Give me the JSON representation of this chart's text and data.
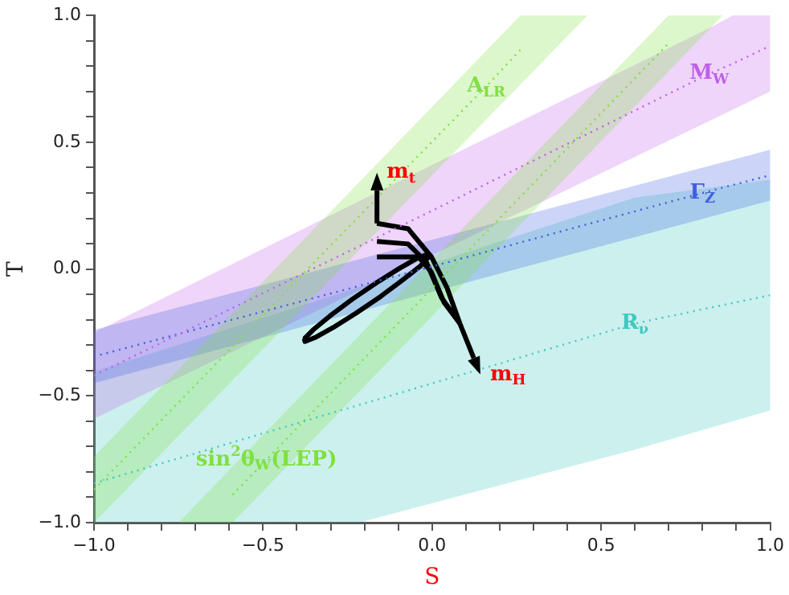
{
  "chart_data": {
    "type": "line",
    "xlabel": "S",
    "ylabel": "T",
    "grid": false,
    "legend": false,
    "xlim": [
      -1,
      1
    ],
    "ylim": [
      -1,
      1
    ],
    "xticks": [
      {
        "value": -1,
        "label": "−1.0"
      },
      {
        "value": -0.9,
        "label": null
      },
      {
        "value": -0.8,
        "label": null
      },
      {
        "value": -0.7,
        "label": null
      },
      {
        "value": -0.6,
        "label": null
      },
      {
        "value": -0.5,
        "label": "−0.5"
      },
      {
        "value": -0.4,
        "label": null
      },
      {
        "value": -0.3,
        "label": null
      },
      {
        "value": -0.2,
        "label": null
      },
      {
        "value": -0.1,
        "label": null
      },
      {
        "value": 0,
        "label": "0.0"
      },
      {
        "value": 0.1,
        "label": null
      },
      {
        "value": 0.2,
        "label": null
      },
      {
        "value": 0.3,
        "label": null
      },
      {
        "value": 0.4,
        "label": null
      },
      {
        "value": 0.5,
        "label": "0.5"
      },
      {
        "value": 0.6,
        "label": null
      },
      {
        "value": 0.7,
        "label": null
      },
      {
        "value": 0.8,
        "label": null
      },
      {
        "value": 0.9,
        "label": null
      },
      {
        "value": 1,
        "label": "1.0"
      }
    ],
    "yticks": [
      {
        "value": -1,
        "label": "−1.0"
      },
      {
        "value": -0.9,
        "label": null
      },
      {
        "value": -0.8,
        "label": null
      },
      {
        "value": -0.7,
        "label": null
      },
      {
        "value": -0.6,
        "label": null
      },
      {
        "value": -0.5,
        "label": "−0.5"
      },
      {
        "value": -0.4,
        "label": null
      },
      {
        "value": -0.3,
        "label": null
      },
      {
        "value": -0.2,
        "label": null
      },
      {
        "value": -0.1,
        "label": null
      },
      {
        "value": 0,
        "label": "0.0"
      },
      {
        "value": 0.1,
        "label": null
      },
      {
        "value": 0.2,
        "label": null
      },
      {
        "value": 0.3,
        "label": null
      },
      {
        "value": 0.4,
        "label": null
      },
      {
        "value": 0.5,
        "label": "0.5"
      },
      {
        "value": 0.6,
        "label": null
      },
      {
        "value": 0.7,
        "label": null
      },
      {
        "value": 0.8,
        "label": null
      },
      {
        "value": 0.9,
        "label": null
      },
      {
        "value": 1,
        "label": "1.0"
      }
    ],
    "annotations": [
      {
        "text": "m$_{t}$",
        "x": -0.163,
        "y": 0.38
      },
      {
        "text": "m$_{H}$",
        "x": 0.143,
        "y": -0.416
      }
    ],
    "series": [
      {
        "name": "R$_{ν}$",
        "color": "#40c8c0",
        "line_style": "dotted",
        "x": [
          -1,
          -0.216,
          0.6,
          1
        ],
        "values": [
          -0.845,
          -0.536,
          -0.215,
          -0.103
        ],
        "lower": [
          -1,
          -1,
          -0.712,
          -0.558
        ],
        "upper": [
          -0.405,
          -0.072,
          0.282,
          0.352
        ]
      },
      {
        "name": "M$_{W}$",
        "color": "#c060e8",
        "line_style": "dotted",
        "x": [
          -1,
          0,
          0.82,
          0.89,
          1
        ],
        "values": [
          -0.42,
          0.23,
          0.77,
          0.81,
          0.88
        ],
        "lower": [
          -0.59,
          0.055,
          0.584,
          0.629,
          0.7
        ],
        "upper": [
          -0.25,
          0.41,
          0.95,
          1,
          1
        ]
      },
      {
        "name": "Γ$_{Z}$",
        "color": "#4060e0",
        "line_style": "dotted",
        "x": [
          -1,
          0,
          0.8,
          0.9,
          1
        ],
        "values": [
          -0.345,
          0.01,
          0.3,
          0.335,
          0.37
        ],
        "lower": [
          -0.45,
          -0.09,
          0.198,
          0.234,
          0.27
        ],
        "upper": [
          -0.24,
          0.115,
          0.4,
          0.435,
          0.47
        ]
      },
      {
        "name": "A$_{LR}$",
        "color": "#80e040",
        "line_style": "dotted",
        "x": [
          -1,
          -0.3,
          0.16,
          0.261,
          0.46
        ],
        "values": [
          -0.87,
          0.093,
          0.72,
          0.864,
          null
        ],
        "lower": [
          -1,
          -0.041,
          0.589,
          0.727,
          1
        ],
        "upper": [
          -0.74,
          0.226,
          0.86,
          1,
          1
        ]
      },
      {
        "name": "sin$^{2}$θ$_{W}$(LEP)",
        "color": "#80e040",
        "line_style": "dotted",
        "x": [
          -0.75,
          -0.59,
          -0.49,
          0.699,
          0.859
        ],
        "values": [
          null,
          -0.89,
          -0.752,
          0.889,
          null
        ],
        "lower": [
          -1,
          -1,
          -0.862,
          0.779,
          1
        ],
        "upper": [
          -1,
          -0.779,
          -0.641,
          1,
          1
        ]
      },
      {
        "color": "#000000",
        "line_style": "solid",
        "x": [
          -0.378,
          -0.376,
          -0.346,
          -0.293,
          -0.225,
          -0.152,
          -0.086,
          -0.036,
          -0.01
        ],
        "values": [
          -0.275,
          -0.286,
          -0.27,
          -0.231,
          -0.174,
          -0.108,
          -0.042,
          0.01,
          0.048
        ]
      },
      {
        "color": "#000000",
        "line_style": "solid",
        "x": [
          -0.378,
          -0.352,
          -0.302,
          -0.236,
          -0.163,
          -0.095,
          -0.042,
          -0.012,
          -0.01
        ],
        "values": [
          -0.275,
          -0.24,
          -0.185,
          -0.119,
          -0.053,
          0.004,
          0.044,
          0.059,
          0.048
        ]
      },
      {
        "color": "#000000",
        "line_style": "solid",
        "x": [
          -0.163,
          -0.071,
          -0.002,
          0.044,
          0.082
        ],
        "values": [
          0.18,
          0.159,
          0.048,
          -0.073,
          -0.214
        ]
      },
      {
        "color": "#000000",
        "line_style": "solid",
        "x": [
          -0.163,
          -0.071,
          -0.017,
          0.028,
          0.082
        ],
        "values": [
          0.109,
          0.099,
          0.028,
          -0.113,
          -0.214
        ]
      },
      {
        "color": "#000000",
        "line_style": "solid",
        "x": [
          -0.163,
          -0.04,
          -0.002,
          0.036,
          0.082
        ],
        "values": [
          0.048,
          0.048,
          -0.012,
          -0.133,
          -0.214
        ]
      }
    ]
  }
}
